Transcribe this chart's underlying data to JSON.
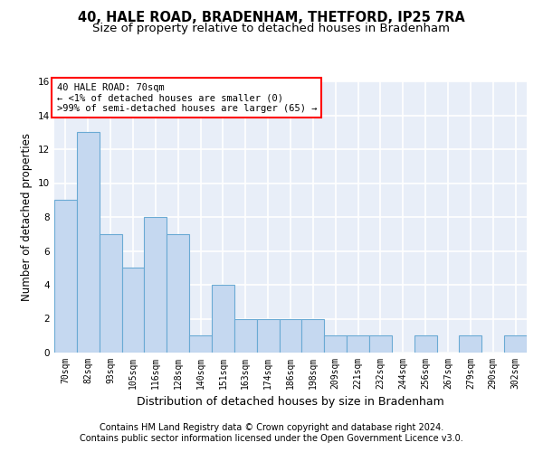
{
  "title1": "40, HALE ROAD, BRADENHAM, THETFORD, IP25 7RA",
  "title2": "Size of property relative to detached houses in Bradenham",
  "xlabel": "Distribution of detached houses by size in Bradenham",
  "ylabel": "Number of detached properties",
  "categories": [
    "70sqm",
    "82sqm",
    "93sqm",
    "105sqm",
    "116sqm",
    "128sqm",
    "140sqm",
    "151sqm",
    "163sqm",
    "174sqm",
    "186sqm",
    "198sqm",
    "209sqm",
    "221sqm",
    "232sqm",
    "244sqm",
    "256sqm",
    "267sqm",
    "279sqm",
    "290sqm",
    "302sqm"
  ],
  "values": [
    9,
    13,
    7,
    5,
    8,
    7,
    1,
    4,
    2,
    2,
    2,
    2,
    1,
    1,
    1,
    0,
    1,
    0,
    1,
    0,
    1
  ],
  "bar_color": "#c5d8f0",
  "bar_edgecolor": "#6aaad4",
  "highlight_bar_index": 0,
  "ylim": [
    0,
    16
  ],
  "yticks": [
    0,
    2,
    4,
    6,
    8,
    10,
    12,
    14,
    16
  ],
  "annotation_title": "40 HALE ROAD: 70sqm",
  "annotation_line1": "← <1% of detached houses are smaller (0)",
  "annotation_line2": ">99% of semi-detached houses are larger (65) →",
  "footer1": "Contains HM Land Registry data © Crown copyright and database right 2024.",
  "footer2": "Contains public sector information licensed under the Open Government Licence v3.0.",
  "background_color": "#e8eef8",
  "grid_color": "#ffffff",
  "title1_fontsize": 10.5,
  "title2_fontsize": 9.5,
  "ylabel_fontsize": 8.5,
  "xlabel_fontsize": 9,
  "tick_fontsize": 7,
  "footer_fontsize": 7,
  "annotation_fontsize": 7.5
}
